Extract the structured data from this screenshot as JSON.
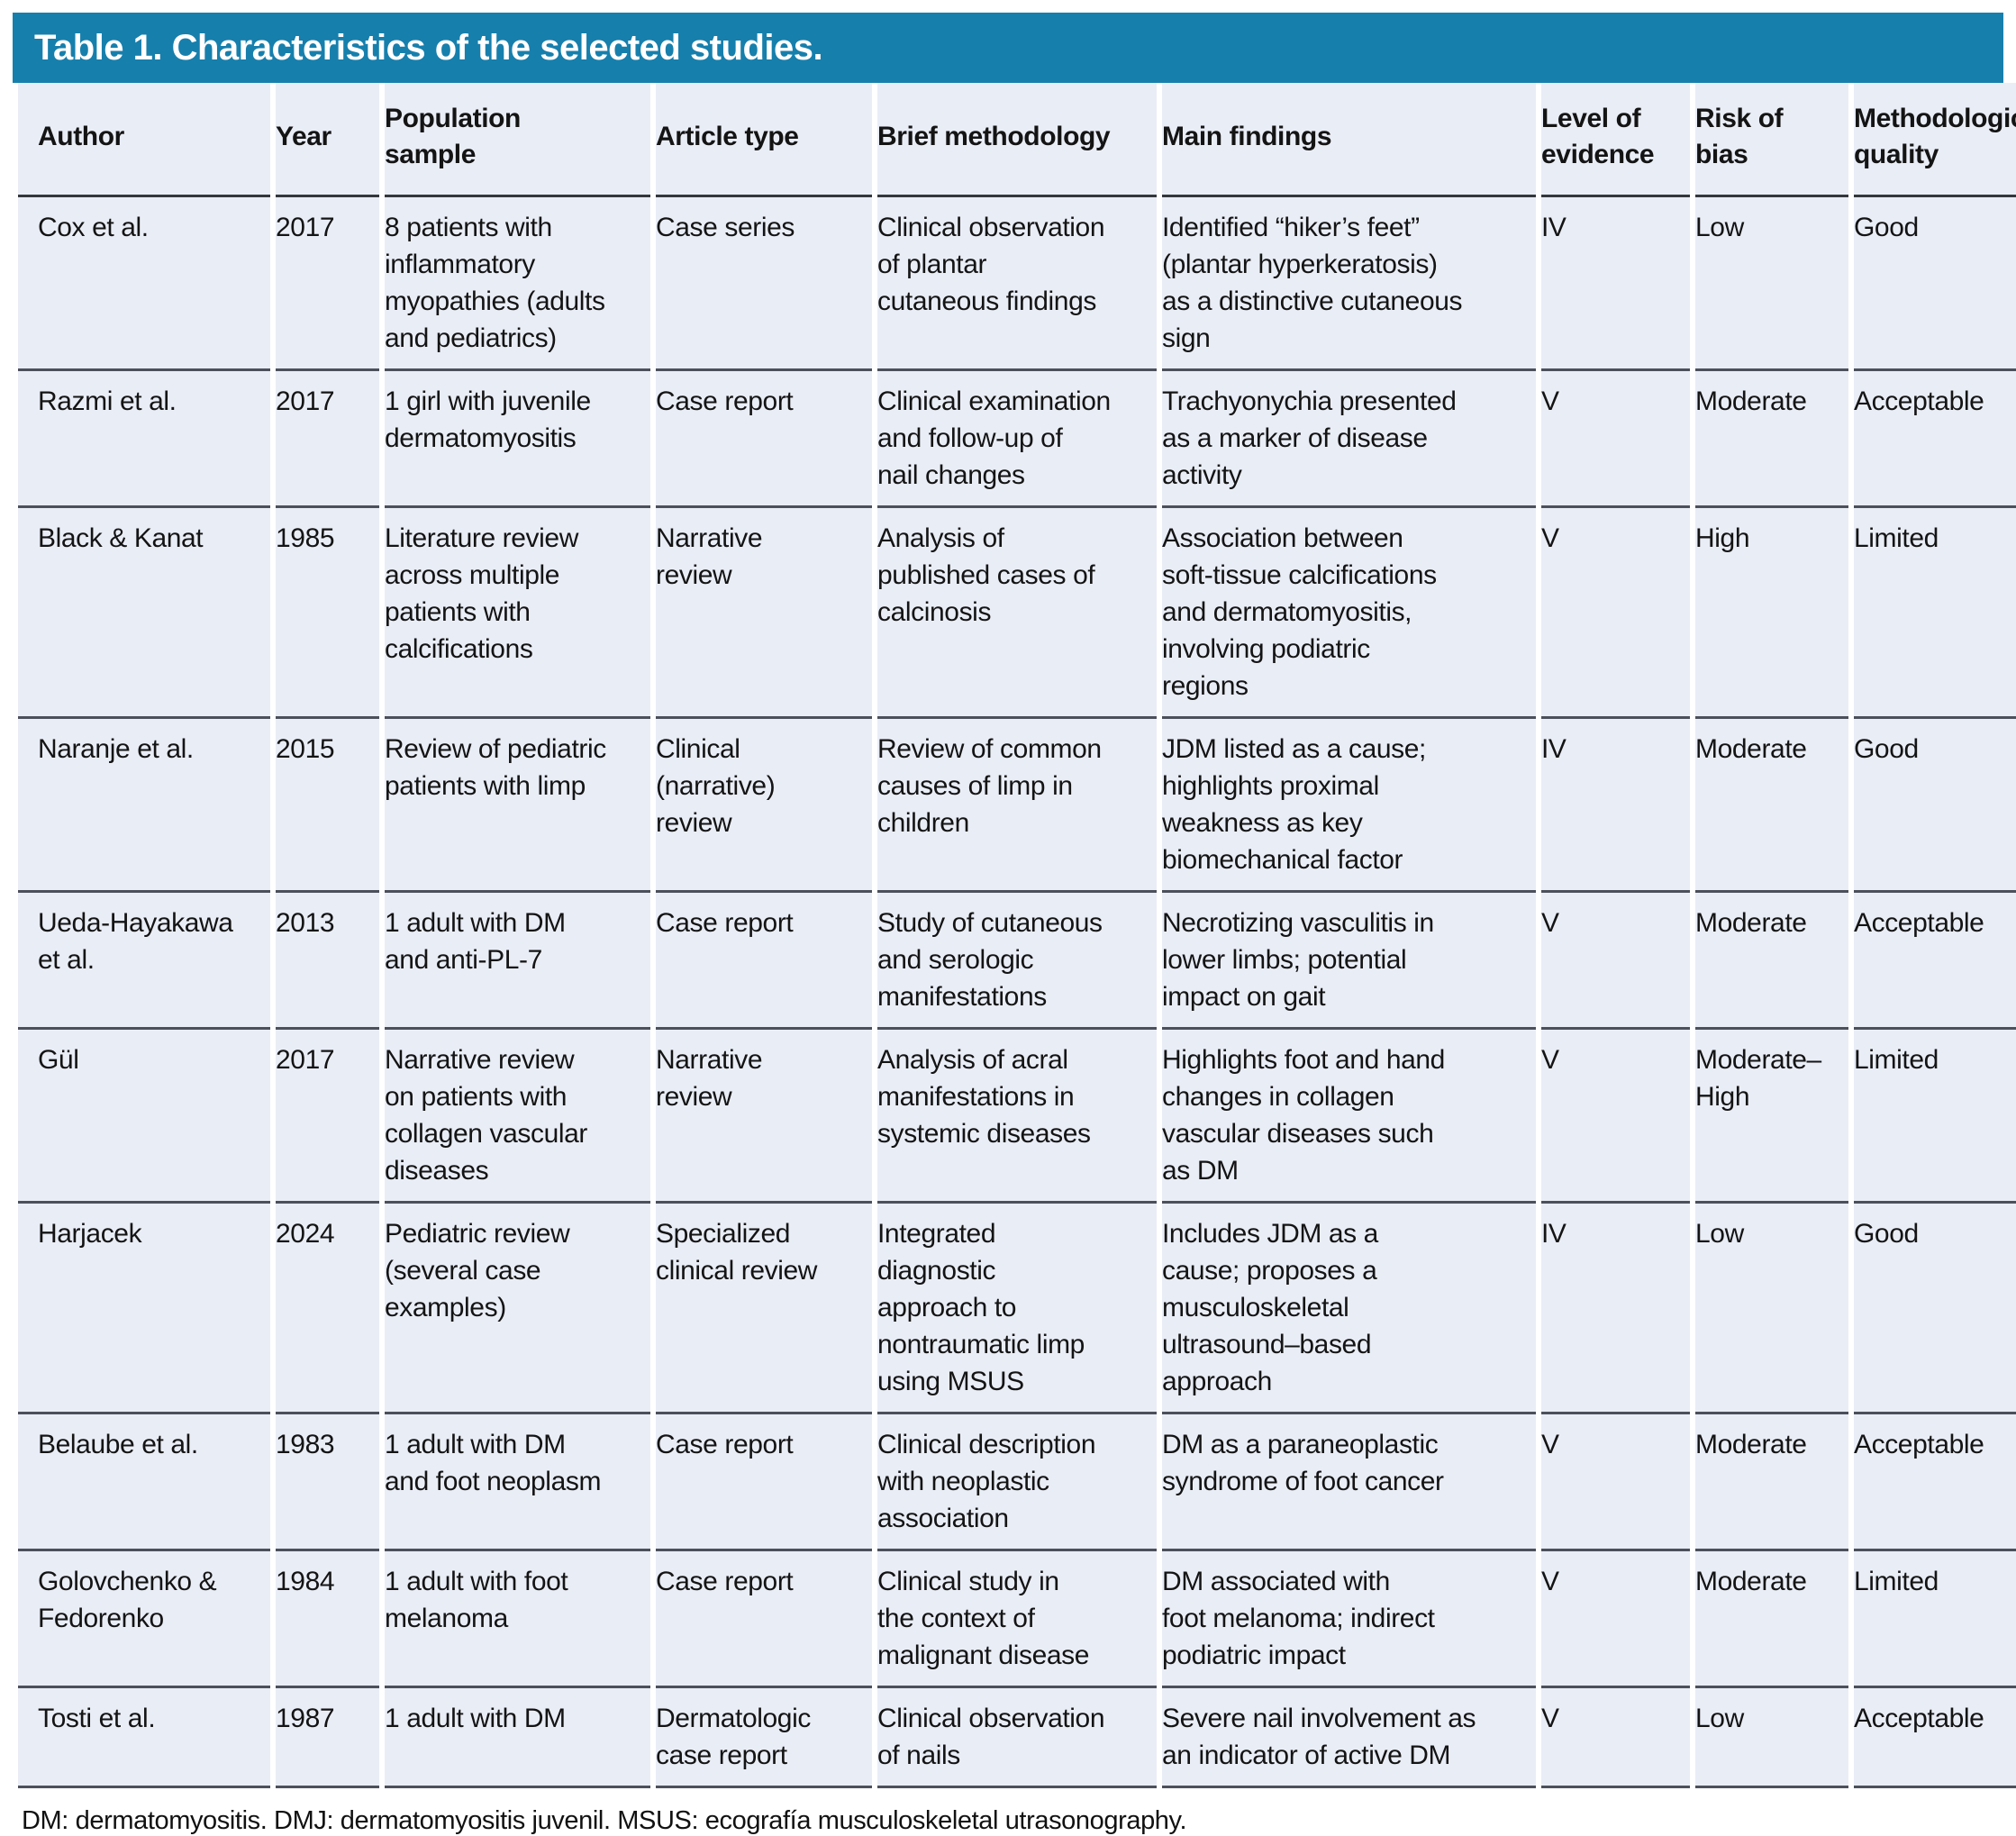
{
  "title": "Table 1. Characteristics of the selected studies.",
  "colors": {
    "title_bar_blue": "#177fac",
    "row_background": "#e9edf6",
    "row_border": "#4b505a"
  },
  "table": {
    "headers": [
      "Author",
      "Year",
      "Population\nsample",
      "Article type",
      "Brief methodology",
      "Main findings",
      "Level of\nevidence",
      "Risk of\nbias",
      "Methodologic\nquality"
    ],
    "rows": [
      [
        "Cox et al.",
        "2017",
        "8 patients with\ninflammatory\nmyopathies (adults\nand pediatrics)",
        "Case series",
        "Clinical observation\nof plantar\ncutaneous findings",
        "Identified “hiker’s feet”\n(plantar hyperkeratosis)\nas a distinctive cutaneous\nsign",
        "IV",
        "Low",
        "Good"
      ],
      [
        "Razmi et al.",
        "2017",
        "1 girl with juvenile\ndermatomyositis",
        "Case report",
        "Clinical examination\nand follow-up of\nnail changes",
        "Trachyonychia presented\nas a marker of disease\nactivity",
        "V",
        "Moderate",
        "Acceptable"
      ],
      [
        "Black & Kanat",
        "1985",
        "Literature review\nacross multiple\npatients with\ncalcifications",
        "Narrative\nreview",
        "Analysis of\npublished cases of\ncalcinosis",
        "Association between\nsoft-tissue calcifications\nand dermatomyositis,\ninvolving podiatric\nregions",
        "V",
        "High",
        "Limited"
      ],
      [
        "Naranje et al.",
        "2015",
        "Review of pediatric\npatients with limp",
        "Clinical\n(narrative)\nreview",
        "Review of common\ncauses of limp in\nchildren",
        "JDM listed as a cause;\nhighlights proximal\nweakness as key\nbiomechanical factor",
        "IV",
        "Moderate",
        "Good"
      ],
      [
        "Ueda-Hayakawa\net al.",
        "2013",
        "1 adult with DM\nand anti-PL-7",
        "Case report",
        "Study of cutaneous\nand serologic\nmanifestations",
        "Necrotizing vasculitis in\nlower limbs; potential\nimpact on gait",
        "V",
        "Moderate",
        "Acceptable"
      ],
      [
        "Gül",
        "2017",
        "Narrative review\non patients with\ncollagen vascular\ndiseases",
        "Narrative\nreview",
        "Analysis of acral\nmanifestations in\nsystemic diseases",
        "Highlights foot and hand\nchanges in collagen\nvascular diseases such\nas DM",
        "V",
        "Moderate–\nHigh",
        "Limited"
      ],
      [
        "Harjacek",
        "2024",
        "Pediatric review\n(several case\nexamples)",
        "Specialized\nclinical review",
        "Integrated\ndiagnostic\napproach to\nnontraumatic limp\nusing MSUS",
        "Includes JDM as a\ncause; proposes a\nmusculoskeletal\nultrasound–based\napproach",
        "IV",
        "Low",
        "Good"
      ],
      [
        "Belaube et al.",
        "1983",
        "1 adult with DM\nand foot neoplasm",
        "Case report",
        "Clinical description\nwith neoplastic\nassociation",
        "DM as a paraneoplastic\nsyndrome of foot cancer",
        "V",
        "Moderate",
        "Acceptable"
      ],
      [
        "Golovchenko &\nFedorenko",
        "1984",
        "1 adult with foot\nmelanoma",
        "Case report",
        "Clinical study in\nthe context of\nmalignant disease",
        "DM associated with\nfoot melanoma; indirect\npodiatric impact",
        "V",
        "Moderate",
        "Limited"
      ],
      [
        "Tosti et al.",
        "1987",
        "1 adult with DM",
        "Dermatologic\ncase report",
        "Clinical observation\nof nails",
        "Severe nail involvement as\nan indicator of active DM",
        "V",
        "Low",
        "Acceptable"
      ]
    ]
  },
  "footnote": "DM: dermatomyositis. DMJ: dermatomyositis juvenil. MSUS: ecografía musculoskeletal utrasonography."
}
